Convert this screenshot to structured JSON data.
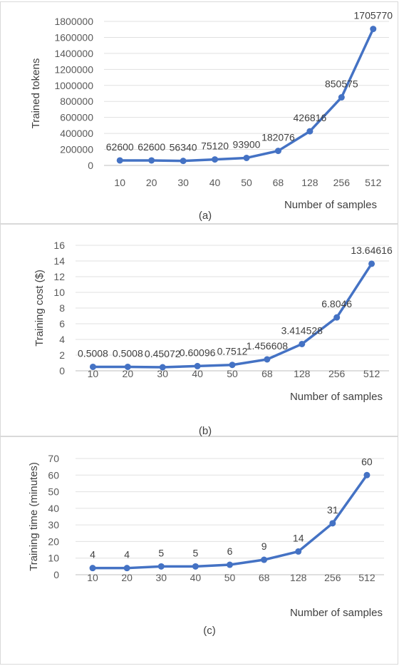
{
  "chart_data": [
    {
      "type": "line",
      "caption": "(a)",
      "xlabel": "Number of samples",
      "ylabel": "Trained tokens",
      "categories": [
        "10",
        "20",
        "30",
        "40",
        "50",
        "68",
        "128",
        "256",
        "512"
      ],
      "values": [
        62600,
        62600,
        56340,
        75120,
        93900,
        182076,
        426816,
        850575,
        1705770
      ],
      "labels": [
        "62600",
        "62600",
        "56340",
        "75120",
        "93900",
        "182076",
        "426816",
        "850575",
        "1705770"
      ],
      "ylim": [
        0,
        1800000
      ],
      "yticks": [
        0,
        200000,
        400000,
        600000,
        800000,
        1000000,
        1200000,
        1400000,
        1600000,
        1800000
      ],
      "grid": true,
      "color": "#4472c4"
    },
    {
      "type": "line",
      "caption": "(b)",
      "xlabel": "Number of samples",
      "ylabel": "Training cost ($)",
      "categories": [
        "10",
        "20",
        "30",
        "40",
        "50",
        "68",
        "128",
        "256",
        "512"
      ],
      "values": [
        0.5008,
        0.5008,
        0.45072,
        0.60096,
        0.7512,
        1.456608,
        3.414528,
        6.8046,
        13.64616
      ],
      "labels": [
        "0.5008",
        "0.5008",
        "0.45072",
        "0.60096",
        "0.7512",
        "1.456608",
        "3.414528",
        "6.8046",
        "13.64616"
      ],
      "ylim": [
        0,
        16
      ],
      "yticks": [
        0,
        2,
        4,
        6,
        8,
        10,
        12,
        14,
        16
      ],
      "grid": true,
      "color": "#4472c4"
    },
    {
      "type": "line",
      "caption": "(c)",
      "xlabel": "Number of samples",
      "ylabel": "Training time (minutes)",
      "categories": [
        "10",
        "20",
        "30",
        "40",
        "50",
        "68",
        "128",
        "256",
        "512"
      ],
      "values": [
        4,
        4,
        5,
        5,
        6,
        9,
        14,
        31,
        60
      ],
      "labels": [
        "4",
        "4",
        "5",
        "5",
        "6",
        "9",
        "14",
        "31",
        "60"
      ],
      "ylim": [
        0,
        70
      ],
      "yticks": [
        0,
        10,
        20,
        30,
        40,
        50,
        60,
        70
      ],
      "grid": true,
      "color": "#4472c4"
    }
  ]
}
